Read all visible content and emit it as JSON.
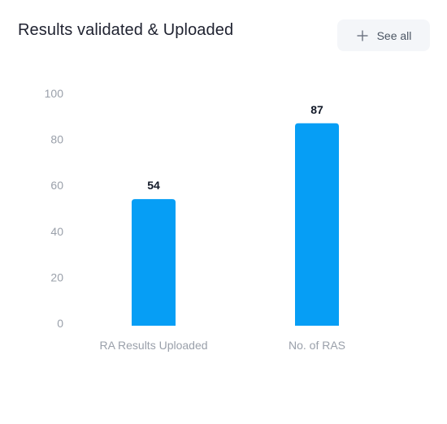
{
  "header": {
    "title": "Results validated & Uploaded",
    "see_all_label": "See all"
  },
  "icons": {
    "see_all": "plus-icon"
  },
  "colors": {
    "bar": "#069ef5",
    "button_bg": "#f4f6f9"
  },
  "chart_data": {
    "type": "bar",
    "categories": [
      "RA Results Uploaded",
      "No. of RAS"
    ],
    "values": [
      54,
      87
    ],
    "title": "Results validated & Uploaded",
    "xlabel": "",
    "ylabel": "",
    "ylim": [
      0,
      100
    ],
    "yticks": [
      0,
      20,
      40,
      60,
      80,
      100
    ],
    "grid": false,
    "data_labels": true
  }
}
